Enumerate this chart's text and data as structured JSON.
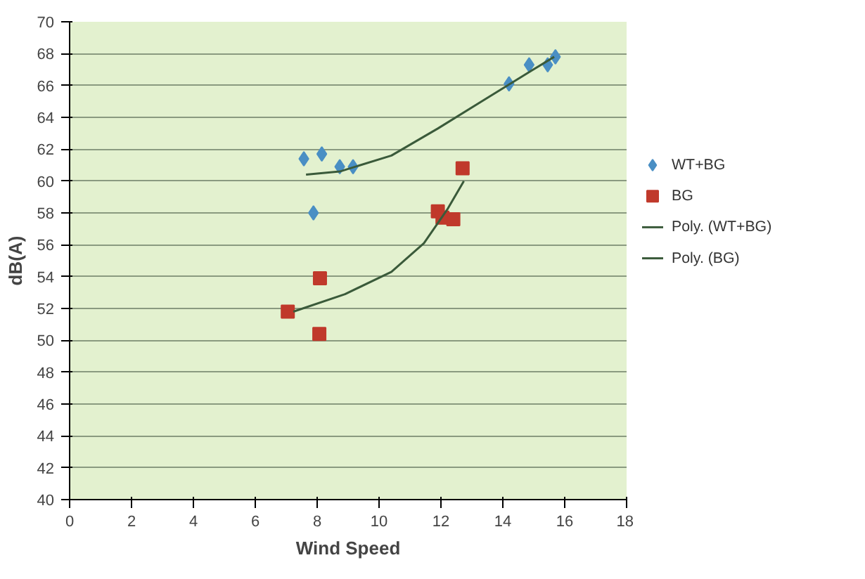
{
  "chart_data": {
    "type": "scatter",
    "xlabel": "Wind Speed",
    "ylabel": "dB(A)",
    "xlim": [
      0,
      18
    ],
    "xticks": [
      0,
      2,
      4,
      6,
      8,
      10,
      12,
      14,
      16,
      18
    ],
    "ylim": [
      40,
      70
    ],
    "yticks": [
      40,
      42,
      44,
      46,
      48,
      50,
      52,
      54,
      56,
      58,
      60,
      62,
      64,
      66,
      68,
      70
    ],
    "grid": "y",
    "legend": "right",
    "series": [
      {
        "name": "WT+BG",
        "color": "#4a8fc4",
        "marker": "diamond",
        "x": [
          7.57,
          8.15,
          8.73,
          9.16,
          7.88,
          14.2,
          14.85,
          15.45,
          15.7
        ],
        "values": [
          61.4,
          61.7,
          60.9,
          60.9,
          58.0,
          66.1,
          67.3,
          67.3,
          67.8
        ]
      },
      {
        "name": "BG",
        "color": "#c0392b",
        "marker": "square",
        "x": [
          7.05,
          8.09,
          8.07,
          11.9,
          12.05,
          12.4,
          12.7
        ],
        "values": [
          51.8,
          53.9,
          50.4,
          58.1,
          57.7,
          57.6,
          60.8
        ]
      },
      {
        "name": "Poly. (WT+BG)",
        "type": "line",
        "color": "#3a5a3a",
        "x": [
          7.64,
          8.73,
          10.4,
          11.9,
          13.4,
          14.9,
          15.66
        ],
        "values": [
          60.4,
          60.6,
          61.6,
          63.3,
          65.1,
          66.9,
          67.8
        ]
      },
      {
        "name": "Poly. (BG)",
        "type": "line",
        "color": "#3a5a3a",
        "x": [
          7.23,
          8.9,
          10.4,
          11.45,
          12.2,
          12.74
        ],
        "values": [
          51.8,
          52.9,
          54.3,
          56.1,
          58.2,
          60.0
        ]
      }
    ]
  }
}
